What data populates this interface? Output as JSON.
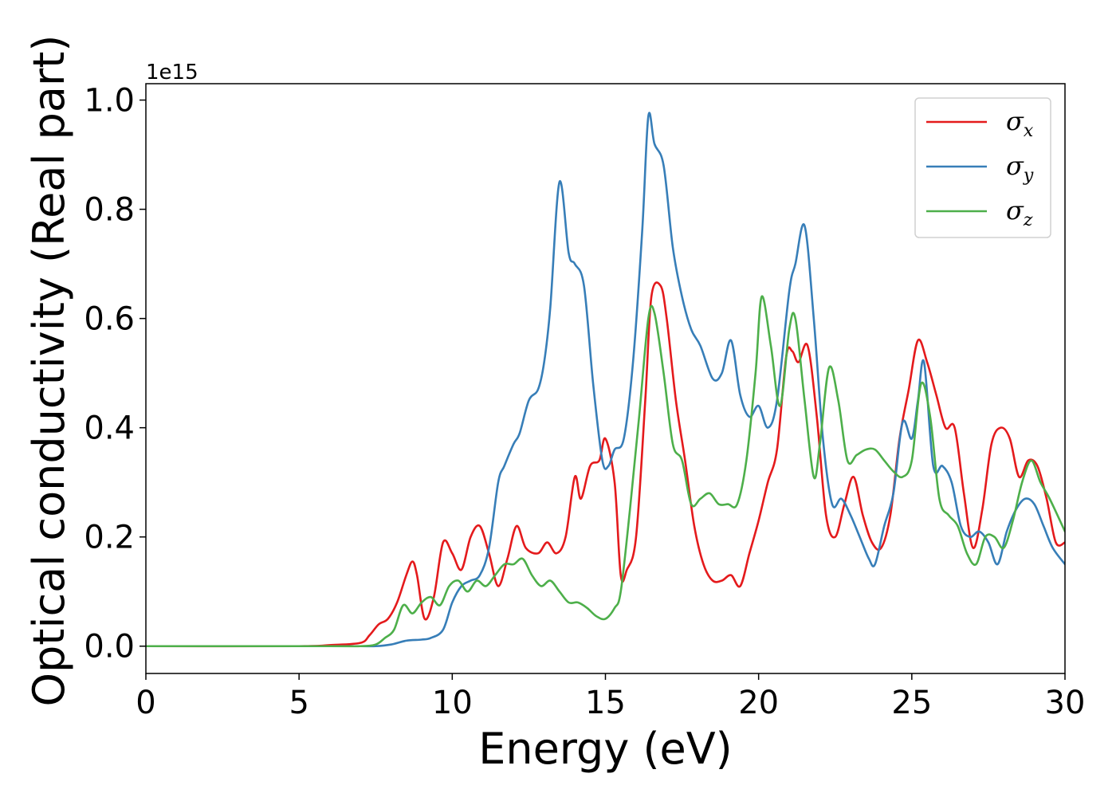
{
  "chart_data": {
    "type": "line",
    "xlabel": "Energy (eV)",
    "ylabel": "Optical conductivity (Real part)",
    "y_offset_label": "1e15",
    "y_scale_factor": 1000000000000000.0,
    "xlim": [
      0,
      30
    ],
    "ylim": [
      -0.05,
      1.03
    ],
    "xticks": [
      0,
      5,
      10,
      15,
      20,
      25,
      30
    ],
    "yticks": [
      0.0,
      0.2,
      0.4,
      0.6,
      0.8,
      1.0
    ],
    "xtick_labels": [
      "0",
      "5",
      "10",
      "15",
      "20",
      "25",
      "30"
    ],
    "ytick_labels": [
      "0.0",
      "0.2",
      "0.4",
      "0.6",
      "0.8",
      "1.0"
    ],
    "grid": false,
    "legend_position": "top-right",
    "series": [
      {
        "name": "σx",
        "symbol": "σ",
        "subscript": "x",
        "color": "#e41a1c",
        "x": [
          0,
          5,
          6,
          7,
          7.3,
          7.6,
          7.9,
          8.2,
          8.5,
          8.7,
          8.85,
          9.1,
          9.4,
          9.7,
          10.0,
          10.3,
          10.6,
          10.9,
          11.2,
          11.5,
          11.8,
          12.1,
          12.4,
          12.8,
          13.1,
          13.4,
          13.7,
          14.0,
          14.2,
          14.5,
          14.8,
          15.0,
          15.3,
          15.5,
          15.7,
          16.0,
          16.3,
          16.5,
          16.8,
          17.0,
          17.3,
          17.6,
          17.9,
          18.2,
          18.5,
          18.8,
          19.1,
          19.4,
          19.7,
          20.0,
          20.3,
          20.6,
          20.9,
          21.1,
          21.3,
          21.6,
          21.9,
          22.2,
          22.5,
          22.8,
          23.1,
          23.4,
          23.7,
          24.0,
          24.3,
          24.6,
          24.9,
          25.2,
          25.5,
          25.8,
          26.1,
          26.4,
          26.7,
          27.0,
          27.3,
          27.6,
          27.9,
          28.2,
          28.5,
          28.8,
          29.1,
          29.4,
          29.7,
          30.0
        ],
        "y": [
          0,
          0,
          0.002,
          0.006,
          0.02,
          0.04,
          0.05,
          0.08,
          0.13,
          0.155,
          0.13,
          0.05,
          0.09,
          0.19,
          0.17,
          0.14,
          0.2,
          0.22,
          0.17,
          0.11,
          0.16,
          0.22,
          0.18,
          0.17,
          0.19,
          0.17,
          0.2,
          0.31,
          0.27,
          0.33,
          0.34,
          0.38,
          0.3,
          0.13,
          0.14,
          0.2,
          0.45,
          0.64,
          0.66,
          0.6,
          0.45,
          0.34,
          0.22,
          0.15,
          0.12,
          0.12,
          0.13,
          0.11,
          0.17,
          0.23,
          0.3,
          0.36,
          0.53,
          0.54,
          0.52,
          0.55,
          0.42,
          0.24,
          0.2,
          0.26,
          0.31,
          0.24,
          0.19,
          0.18,
          0.24,
          0.38,
          0.47,
          0.56,
          0.52,
          0.46,
          0.4,
          0.4,
          0.28,
          0.18,
          0.25,
          0.37,
          0.4,
          0.38,
          0.31,
          0.34,
          0.33,
          0.27,
          0.19,
          0.19
        ]
      },
      {
        "name": "σy",
        "symbol": "σ",
        "subscript": "y",
        "color": "#377eb8",
        "x": [
          0,
          6,
          7,
          7.5,
          8,
          8.5,
          9,
          9.3,
          9.7,
          10.0,
          10.3,
          10.6,
          10.9,
          11.2,
          11.5,
          11.7,
          12.0,
          12.2,
          12.5,
          12.8,
          13.0,
          13.2,
          13.5,
          13.8,
          14.0,
          14.3,
          14.6,
          14.9,
          15.1,
          15.3,
          15.6,
          15.9,
          16.2,
          16.4,
          16.6,
          16.9,
          17.2,
          17.5,
          17.8,
          18.1,
          18.5,
          18.8,
          19.1,
          19.4,
          19.7,
          20.0,
          20.3,
          20.6,
          21.0,
          21.2,
          21.5,
          21.8,
          22.1,
          22.4,
          22.7,
          23.0,
          23.3,
          23.6,
          23.8,
          24.1,
          24.4,
          24.7,
          25.0,
          25.2,
          25.4,
          25.7,
          26.0,
          26.3,
          26.6,
          26.9,
          27.2,
          27.5,
          27.8,
          28.1,
          28.4,
          28.7,
          29.0,
          29.3,
          29.6,
          30.0
        ],
        "y": [
          0,
          0,
          0,
          0,
          0.003,
          0.01,
          0.012,
          0.015,
          0.03,
          0.08,
          0.11,
          0.12,
          0.13,
          0.18,
          0.3,
          0.33,
          0.37,
          0.39,
          0.45,
          0.47,
          0.52,
          0.62,
          0.85,
          0.72,
          0.7,
          0.66,
          0.48,
          0.34,
          0.33,
          0.36,
          0.38,
          0.52,
          0.76,
          0.97,
          0.92,
          0.88,
          0.73,
          0.64,
          0.58,
          0.55,
          0.49,
          0.5,
          0.56,
          0.46,
          0.42,
          0.44,
          0.4,
          0.45,
          0.65,
          0.7,
          0.77,
          0.6,
          0.38,
          0.26,
          0.27,
          0.24,
          0.2,
          0.16,
          0.15,
          0.22,
          0.28,
          0.41,
          0.38,
          0.45,
          0.52,
          0.33,
          0.33,
          0.3,
          0.22,
          0.2,
          0.21,
          0.19,
          0.15,
          0.21,
          0.25,
          0.27,
          0.26,
          0.22,
          0.18,
          0.15
        ]
      },
      {
        "name": "σz",
        "symbol": "σ",
        "subscript": "z",
        "color": "#4daf4a",
        "x": [
          0,
          6,
          7,
          7.5,
          7.8,
          8.1,
          8.4,
          8.7,
          9.0,
          9.3,
          9.6,
          9.9,
          10.2,
          10.5,
          10.8,
          11.1,
          11.4,
          11.7,
          12.0,
          12.3,
          12.6,
          12.9,
          13.2,
          13.5,
          13.8,
          14.1,
          14.4,
          14.7,
          15.0,
          15.3,
          15.5,
          15.8,
          16.1,
          16.4,
          16.6,
          16.9,
          17.2,
          17.5,
          17.8,
          18.1,
          18.4,
          18.7,
          19.0,
          19.3,
          19.6,
          19.9,
          20.1,
          20.4,
          20.7,
          21.0,
          21.2,
          21.5,
          21.8,
          22.0,
          22.3,
          22.6,
          22.9,
          23.2,
          23.5,
          23.8,
          24.1,
          24.4,
          24.7,
          25.0,
          25.3,
          25.6,
          25.9,
          26.2,
          26.5,
          26.8,
          27.1,
          27.4,
          27.7,
          28.0,
          28.3,
          28.6,
          28.9,
          29.2,
          29.5,
          30.0
        ],
        "y": [
          0,
          0,
          0,
          0.003,
          0.015,
          0.03,
          0.075,
          0.06,
          0.08,
          0.09,
          0.075,
          0.11,
          0.12,
          0.1,
          0.12,
          0.11,
          0.13,
          0.15,
          0.15,
          0.16,
          0.13,
          0.11,
          0.12,
          0.1,
          0.08,
          0.08,
          0.07,
          0.055,
          0.05,
          0.07,
          0.1,
          0.25,
          0.42,
          0.6,
          0.61,
          0.5,
          0.37,
          0.34,
          0.26,
          0.27,
          0.28,
          0.26,
          0.26,
          0.26,
          0.34,
          0.5,
          0.64,
          0.55,
          0.44,
          0.58,
          0.6,
          0.45,
          0.31,
          0.37,
          0.51,
          0.45,
          0.34,
          0.35,
          0.36,
          0.36,
          0.34,
          0.32,
          0.31,
          0.34,
          0.48,
          0.42,
          0.27,
          0.24,
          0.22,
          0.17,
          0.15,
          0.2,
          0.2,
          0.18,
          0.23,
          0.3,
          0.34,
          0.3,
          0.27,
          0.21
        ]
      }
    ]
  }
}
